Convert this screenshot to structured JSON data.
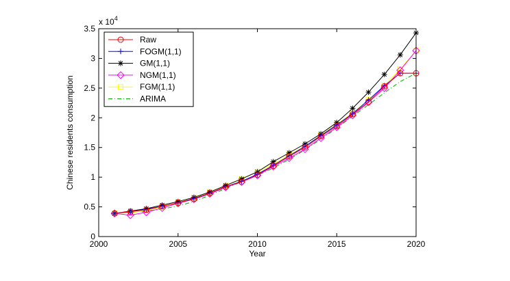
{
  "chart_data": {
    "type": "line",
    "title": "",
    "xlabel": "Year",
    "ylabel": "Chinese residents consumption",
    "y_multiplier_label": "x 10",
    "y_multiplier_exponent": "4",
    "xlim": [
      2000,
      2020
    ],
    "ylim": [
      0,
      35000
    ],
    "xticks": [
      2000,
      2005,
      2010,
      2015,
      2020
    ],
    "xtick_labels": [
      "2000",
      "2005",
      "2010",
      "2015",
      "2020"
    ],
    "yticks": [
      0,
      5000,
      10000,
      15000,
      20000,
      25000,
      30000,
      35000
    ],
    "ytick_labels": [
      "0",
      "0.5",
      "1",
      "1.5",
      "2",
      "2.5",
      "3",
      "3.5"
    ],
    "legend_position": "top-left",
    "x": [
      2001,
      2002,
      2003,
      2004,
      2005,
      2006,
      2007,
      2008,
      2009,
      2010,
      2011,
      2012,
      2013,
      2014,
      2015,
      2016,
      2017,
      2018,
      2019,
      2020
    ],
    "series": [
      {
        "name": "Raw",
        "color": "#ff0000",
        "dash": "solid",
        "marker": "circle",
        "values": [
          3900,
          4200,
          4500,
          5100,
          5700,
          6300,
          7300,
          8400,
          9200,
          10400,
          11900,
          13500,
          15000,
          16900,
          18600,
          20600,
          22700,
          25300,
          27500,
          27500
        ]
      },
      {
        "name": "FOGM(1,1)",
        "color": "#0000ff",
        "dash": "solid",
        "marker": "plus",
        "values": [
          3900,
          4200,
          4600,
          5100,
          5700,
          6400,
          7300,
          8400,
          9300,
          10500,
          12000,
          13600,
          15200,
          17000,
          18800,
          20700,
          23000,
          25400,
          27500,
          27500
        ]
      },
      {
        "name": "GM(1,1)",
        "color": "#000000",
        "dash": "solid",
        "marker": "star",
        "values": [
          3900,
          4300,
          4700,
          5300,
          5900,
          6600,
          7500,
          8600,
          9700,
          10900,
          12600,
          14100,
          15600,
          17300,
          19200,
          21600,
          24300,
          27300,
          30600,
          34300
        ]
      },
      {
        "name": "NGM(1,1)",
        "color": "#ff00ff",
        "dash": "solid",
        "marker": "diamond",
        "values": [
          3900,
          3600,
          4100,
          4800,
          5600,
          6300,
          7200,
          8300,
          9200,
          10300,
          11800,
          13200,
          14700,
          16600,
          18400,
          20400,
          22600,
          25000,
          28000,
          31300
        ]
      },
      {
        "name": "FGM(1,1)",
        "color": "#ffff00",
        "dash": "solid",
        "marker": "square",
        "values": [
          3900,
          4000,
          4400,
          5000,
          5700,
          6500,
          7500,
          8600,
          9700,
          10900,
          12200,
          13800,
          15200,
          17100,
          18900,
          20800,
          23000,
          25400,
          28200,
          31300
        ]
      },
      {
        "name": "ARIMA",
        "color": "#00aa00",
        "dash": "dashdot",
        "marker": "none",
        "values": [
          3900,
          4050,
          4300,
          4650,
          5150,
          5900,
          6950,
          8100,
          9250,
          10300,
          11550,
          13000,
          14600,
          16400,
          18250,
          20250,
          22200,
          24200,
          26100,
          27500
        ]
      }
    ]
  }
}
